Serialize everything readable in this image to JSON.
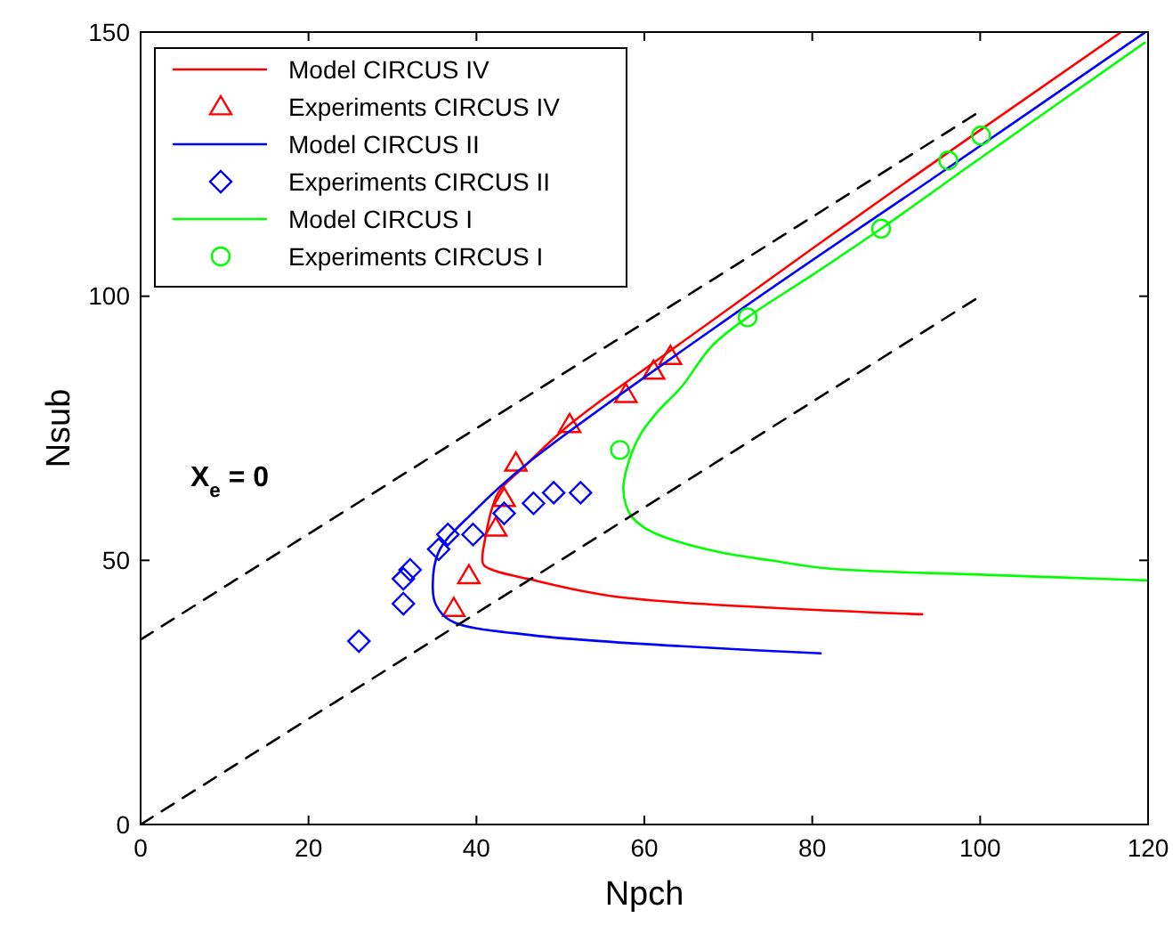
{
  "chart_data": {
    "type": "line",
    "xlabel": "Npch",
    "ylabel": "Nsub",
    "xlim": [
      0,
      120
    ],
    "ylim": [
      0,
      150
    ],
    "xticks": [
      0,
      20,
      40,
      60,
      80,
      100,
      120
    ],
    "yticks": [
      0,
      50,
      100,
      150
    ],
    "grid": false,
    "legend": "top left",
    "annotations": [
      "X$_{e}$ = 0"
    ],
    "series": [
      {
        "name": "Model CIRCUS IV",
        "color": "#ff0000",
        "marker": "none",
        "line_style": "solid",
        "x": [
          116.8,
          90,
          63.1,
          51.1,
          45.4,
          42.6,
          41.0,
          40.8,
          41.9,
          46.1,
          56.7,
          93.1
        ],
        "values": [
          150,
          120.3,
          89.7,
          75.7,
          67.3,
          62.8,
          53.8,
          49.3,
          48.2,
          46.5,
          43.1,
          39.8
        ]
      },
      {
        "name": "Experiments CIRCUS IV",
        "type": "scatter",
        "color": "#ff0000",
        "marker": "triangle",
        "x": [
          37.3,
          39.1,
          42.3,
          43.3,
          44.7,
          51.1,
          57.8,
          61.1,
          63.1
        ],
        "values": [
          40.9,
          47.1,
          56.1,
          61.7,
          68.4,
          75.7,
          81.4,
          85.8,
          88.6
        ]
      },
      {
        "name": "Model CIRCUS II",
        "color": "#0000ff",
        "marker": "none",
        "line_style": "solid",
        "x": [
          119.6,
          95,
          71.6,
          46.1,
          39.8,
          35.5,
          34.8,
          35.2,
          36.9,
          46.8,
          81.0
        ],
        "values": [
          149.9,
          123,
          97.6,
          68.4,
          59.4,
          51.6,
          44.8,
          41.5,
          38.6,
          35.8,
          32.4
        ]
      },
      {
        "name": "Experiments CIRCUS II",
        "type": "scatter",
        "color": "#0000ff",
        "marker": "diamond",
        "x": [
          26,
          31.3,
          31.3,
          32.1,
          35.5,
          36.6,
          39.6,
          43.3,
          46.8,
          49.2,
          52.4
        ],
        "values": [
          34.7,
          41.8,
          46.5,
          48.2,
          52.1,
          54.9,
          54.9,
          58.9,
          60.8,
          62.8,
          62.8
        ]
      },
      {
        "name": "Model CIRCUS I",
        "color": "#00ff00",
        "marker": "none",
        "line_style": "solid",
        "x": [
          119.6,
          100,
          88.2,
          80,
          72.3,
          68,
          64.5,
          61.5,
          59.6,
          58.2,
          57.5,
          57.8,
          58.5,
          60,
          62.4,
          68.8,
          75,
          82.2,
          100,
          120
        ],
        "values": [
          148,
          126.1,
          112.8,
          104,
          96,
          90.5,
          83,
          78,
          74,
          69,
          63.9,
          60.5,
          58.3,
          56.2,
          54.4,
          51.6,
          50,
          48.4,
          47.3,
          46.2
        ]
      },
      {
        "name": "Experiments CIRCUS I",
        "type": "scatter",
        "color": "#00ff00",
        "marker": "circle",
        "x": [
          57.1,
          72.3,
          88.2,
          96.2,
          100.1
        ],
        "values": [
          70.9,
          96,
          112.8,
          125.7,
          130.4
        ]
      },
      {
        "color": "#000000",
        "marker": "none",
        "line_style": "dashed",
        "x": [
          0,
          100
        ],
        "values": [
          35,
          135
        ]
      },
      {
        "color": "#000000",
        "marker": "none",
        "line_style": "dashed",
        "x": [
          0,
          100
        ],
        "values": [
          0,
          100
        ]
      }
    ]
  }
}
